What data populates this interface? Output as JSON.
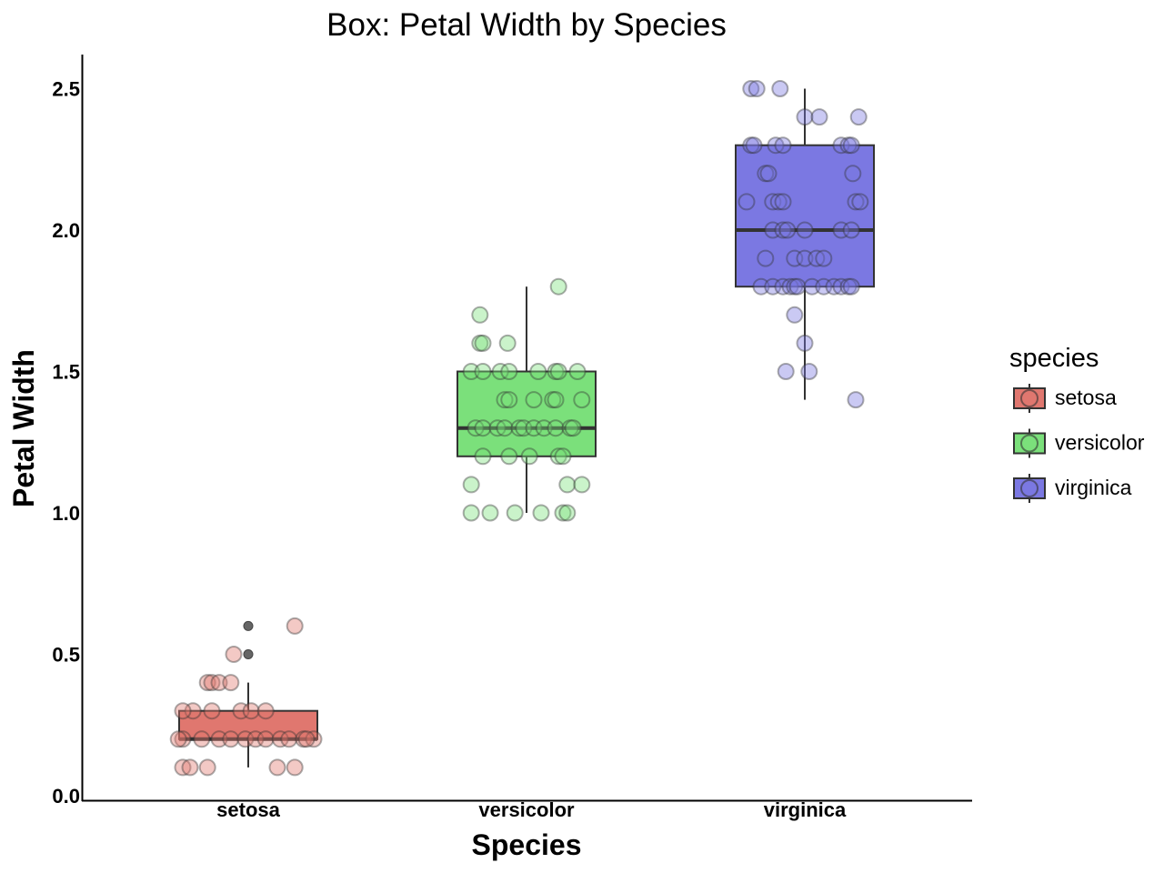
{
  "chart_data": {
    "type": "box",
    "title": "Box: Petal Width by Species",
    "xlabel": "Species",
    "ylabel": "Petal Width",
    "ylim": [
      0.0,
      2.62
    ],
    "yticks": [
      "0.0",
      "0.5",
      "1.0",
      "1.5",
      "2.0",
      "2.5"
    ],
    "categories": [
      "setosa",
      "versicolor",
      "virginica"
    ],
    "legend": {
      "title": "species",
      "position": "right",
      "entries": [
        "setosa",
        "versicolor",
        "virginica"
      ]
    },
    "colors": {
      "setosa": "#e0776f",
      "versicolor": "#7be07b",
      "virginica": "#7b78e2"
    },
    "boxes": [
      {
        "category": "setosa",
        "min": 0.1,
        "q1": 0.2,
        "median": 0.2,
        "q3": 0.3,
        "max": 0.4,
        "outliers": [
          0.5,
          0.6
        ]
      },
      {
        "category": "versicolor",
        "min": 1.0,
        "q1": 1.2,
        "median": 1.3,
        "q3": 1.5,
        "max": 1.8,
        "outliers": []
      },
      {
        "category": "virginica",
        "min": 1.4,
        "q1": 1.8,
        "median": 2.0,
        "q3": 2.3,
        "max": 2.5,
        "outliers": []
      }
    ],
    "points": {
      "setosa": [
        {
          "x": -0.45,
          "y": 0.1
        },
        {
          "x": -0.4,
          "y": 0.1
        },
        {
          "x": -0.28,
          "y": 0.1
        },
        {
          "x": 0.2,
          "y": 0.1
        },
        {
          "x": 0.32,
          "y": 0.1
        },
        {
          "x": -0.45,
          "y": 0.2
        },
        {
          "x": -0.32,
          "y": 0.2
        },
        {
          "x": -0.2,
          "y": 0.2
        },
        {
          "x": -0.12,
          "y": 0.2
        },
        {
          "x": -0.02,
          "y": 0.2
        },
        {
          "x": 0.05,
          "y": 0.2
        },
        {
          "x": 0.12,
          "y": 0.2
        },
        {
          "x": 0.22,
          "y": 0.2
        },
        {
          "x": 0.28,
          "y": 0.2
        },
        {
          "x": 0.38,
          "y": 0.2
        },
        {
          "x": 0.45,
          "y": 0.2
        },
        {
          "x": -0.48,
          "y": 0.2
        },
        {
          "x": 0.4,
          "y": 0.2
        },
        {
          "x": -0.38,
          "y": 0.3
        },
        {
          "x": -0.25,
          "y": 0.3
        },
        {
          "x": -0.05,
          "y": 0.3
        },
        {
          "x": 0.02,
          "y": 0.3
        },
        {
          "x": 0.12,
          "y": 0.3
        },
        {
          "x": -0.45,
          "y": 0.3
        },
        {
          "x": -0.28,
          "y": 0.4
        },
        {
          "x": -0.25,
          "y": 0.4
        },
        {
          "x": -0.2,
          "y": 0.4
        },
        {
          "x": -0.12,
          "y": 0.4
        },
        {
          "x": -0.1,
          "y": 0.5
        },
        {
          "x": 0.32,
          "y": 0.6
        }
      ],
      "versicolor": [
        {
          "x": -0.38,
          "y": 1.0
        },
        {
          "x": -0.25,
          "y": 1.0
        },
        {
          "x": -0.08,
          "y": 1.0
        },
        {
          "x": 0.1,
          "y": 1.0
        },
        {
          "x": 0.25,
          "y": 1.0
        },
        {
          "x": 0.28,
          "y": 1.0
        },
        {
          "x": -0.38,
          "y": 1.1
        },
        {
          "x": 0.28,
          "y": 1.1
        },
        {
          "x": 0.38,
          "y": 1.1
        },
        {
          "x": -0.3,
          "y": 1.2
        },
        {
          "x": -0.12,
          "y": 1.2
        },
        {
          "x": 0.02,
          "y": 1.2
        },
        {
          "x": 0.22,
          "y": 1.2
        },
        {
          "x": 0.25,
          "y": 1.2
        },
        {
          "x": -0.35,
          "y": 1.3
        },
        {
          "x": -0.3,
          "y": 1.3
        },
        {
          "x": -0.2,
          "y": 1.3
        },
        {
          "x": -0.15,
          "y": 1.3
        },
        {
          "x": -0.05,
          "y": 1.3
        },
        {
          "x": -0.02,
          "y": 1.3
        },
        {
          "x": 0.05,
          "y": 1.3
        },
        {
          "x": 0.12,
          "y": 1.3
        },
        {
          "x": 0.2,
          "y": 1.3
        },
        {
          "x": 0.3,
          "y": 1.3
        },
        {
          "x": 0.32,
          "y": 1.3
        },
        {
          "x": -0.15,
          "y": 1.4
        },
        {
          "x": -0.12,
          "y": 1.4
        },
        {
          "x": 0.05,
          "y": 1.4
        },
        {
          "x": 0.18,
          "y": 1.4
        },
        {
          "x": 0.2,
          "y": 1.4
        },
        {
          "x": 0.38,
          "y": 1.4
        },
        {
          "x": -0.38,
          "y": 1.5
        },
        {
          "x": -0.3,
          "y": 1.5
        },
        {
          "x": -0.18,
          "y": 1.5
        },
        {
          "x": -0.12,
          "y": 1.5
        },
        {
          "x": 0.08,
          "y": 1.5
        },
        {
          "x": 0.2,
          "y": 1.5
        },
        {
          "x": 0.22,
          "y": 1.5
        },
        {
          "x": 0.35,
          "y": 1.5
        },
        {
          "x": -0.32,
          "y": 1.6
        },
        {
          "x": -0.3,
          "y": 1.6
        },
        {
          "x": -0.13,
          "y": 1.6
        },
        {
          "x": -0.32,
          "y": 1.7
        },
        {
          "x": 0.22,
          "y": 1.8
        }
      ],
      "virginica": [
        {
          "x": 0.35,
          "y": 1.4
        },
        {
          "x": -0.13,
          "y": 1.5
        },
        {
          "x": 0.03,
          "y": 1.5
        },
        {
          "x": 0.0,
          "y": 1.6
        },
        {
          "x": -0.07,
          "y": 1.7
        },
        {
          "x": -0.3,
          "y": 1.8
        },
        {
          "x": -0.22,
          "y": 1.8
        },
        {
          "x": -0.15,
          "y": 1.8
        },
        {
          "x": -0.1,
          "y": 1.8
        },
        {
          "x": -0.07,
          "y": 1.8
        },
        {
          "x": -0.05,
          "y": 1.8
        },
        {
          "x": 0.05,
          "y": 1.8
        },
        {
          "x": 0.13,
          "y": 1.8
        },
        {
          "x": 0.2,
          "y": 1.8
        },
        {
          "x": 0.25,
          "y": 1.8
        },
        {
          "x": 0.3,
          "y": 1.8
        },
        {
          "x": 0.32,
          "y": 1.8
        },
        {
          "x": -0.27,
          "y": 1.9
        },
        {
          "x": -0.07,
          "y": 1.9
        },
        {
          "x": 0.0,
          "y": 1.9
        },
        {
          "x": 0.08,
          "y": 1.9
        },
        {
          "x": 0.13,
          "y": 1.9
        },
        {
          "x": -0.22,
          "y": 2.0
        },
        {
          "x": -0.15,
          "y": 2.0
        },
        {
          "x": -0.12,
          "y": 2.0
        },
        {
          "x": 0.0,
          "y": 2.0
        },
        {
          "x": 0.25,
          "y": 2.0
        },
        {
          "x": 0.32,
          "y": 2.0
        },
        {
          "x": -0.4,
          "y": 2.1
        },
        {
          "x": -0.22,
          "y": 2.1
        },
        {
          "x": -0.18,
          "y": 2.1
        },
        {
          "x": -0.15,
          "y": 2.1
        },
        {
          "x": 0.35,
          "y": 2.1
        },
        {
          "x": 0.38,
          "y": 2.1
        },
        {
          "x": -0.27,
          "y": 2.2
        },
        {
          "x": -0.25,
          "y": 2.2
        },
        {
          "x": 0.33,
          "y": 2.2
        },
        {
          "x": -0.37,
          "y": 2.3
        },
        {
          "x": -0.35,
          "y": 2.3
        },
        {
          "x": -0.2,
          "y": 2.3
        },
        {
          "x": -0.15,
          "y": 2.3
        },
        {
          "x": 0.25,
          "y": 2.3
        },
        {
          "x": 0.3,
          "y": 2.3
        },
        {
          "x": 0.32,
          "y": 2.3
        },
        {
          "x": 0.0,
          "y": 2.4
        },
        {
          "x": 0.1,
          "y": 2.4
        },
        {
          "x": 0.37,
          "y": 2.4
        },
        {
          "x": -0.37,
          "y": 2.5
        },
        {
          "x": -0.33,
          "y": 2.5
        },
        {
          "x": -0.17,
          "y": 2.5
        }
      ]
    }
  }
}
